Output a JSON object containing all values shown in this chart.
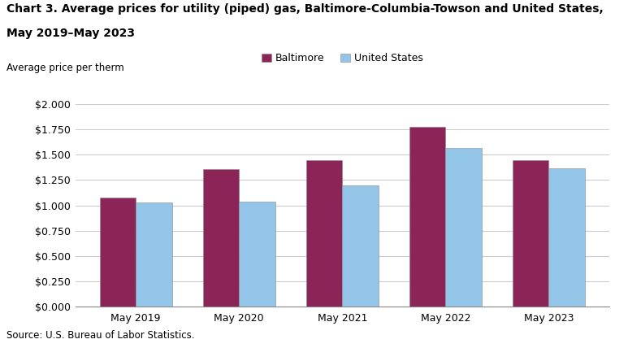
{
  "title_line1": "Chart 3. Average prices for utility (piped) gas, Baltimore-Columbia-Towson and United States,",
  "title_line2": "May 2019–May 2023",
  "ylabel": "Average price per therm",
  "source": "Source: U.S. Bureau of Labor Statistics.",
  "categories": [
    "May 2019",
    "May 2020",
    "May 2021",
    "May 2022",
    "May 2023"
  ],
  "baltimore": [
    1.075,
    1.355,
    1.45,
    1.78,
    1.45
  ],
  "us": [
    1.03,
    1.04,
    1.2,
    1.57,
    1.37
  ],
  "baltimore_color": "#8B2457",
  "us_color": "#92C5E8",
  "bar_edge_color": "#888888",
  "ylim": [
    0.0,
    2.0
  ],
  "yticks": [
    0.0,
    0.25,
    0.5,
    0.75,
    1.0,
    1.25,
    1.5,
    1.75,
    2.0
  ],
  "legend_labels": [
    "Baltimore",
    "United States"
  ],
  "bar_width": 0.35,
  "title_fontsize": 10.0,
  "axis_label_fontsize": 8.5,
  "tick_fontsize": 9,
  "legend_fontsize": 9,
  "source_fontsize": 8.5,
  "background_color": "#ffffff",
  "grid_color": "#cccccc"
}
